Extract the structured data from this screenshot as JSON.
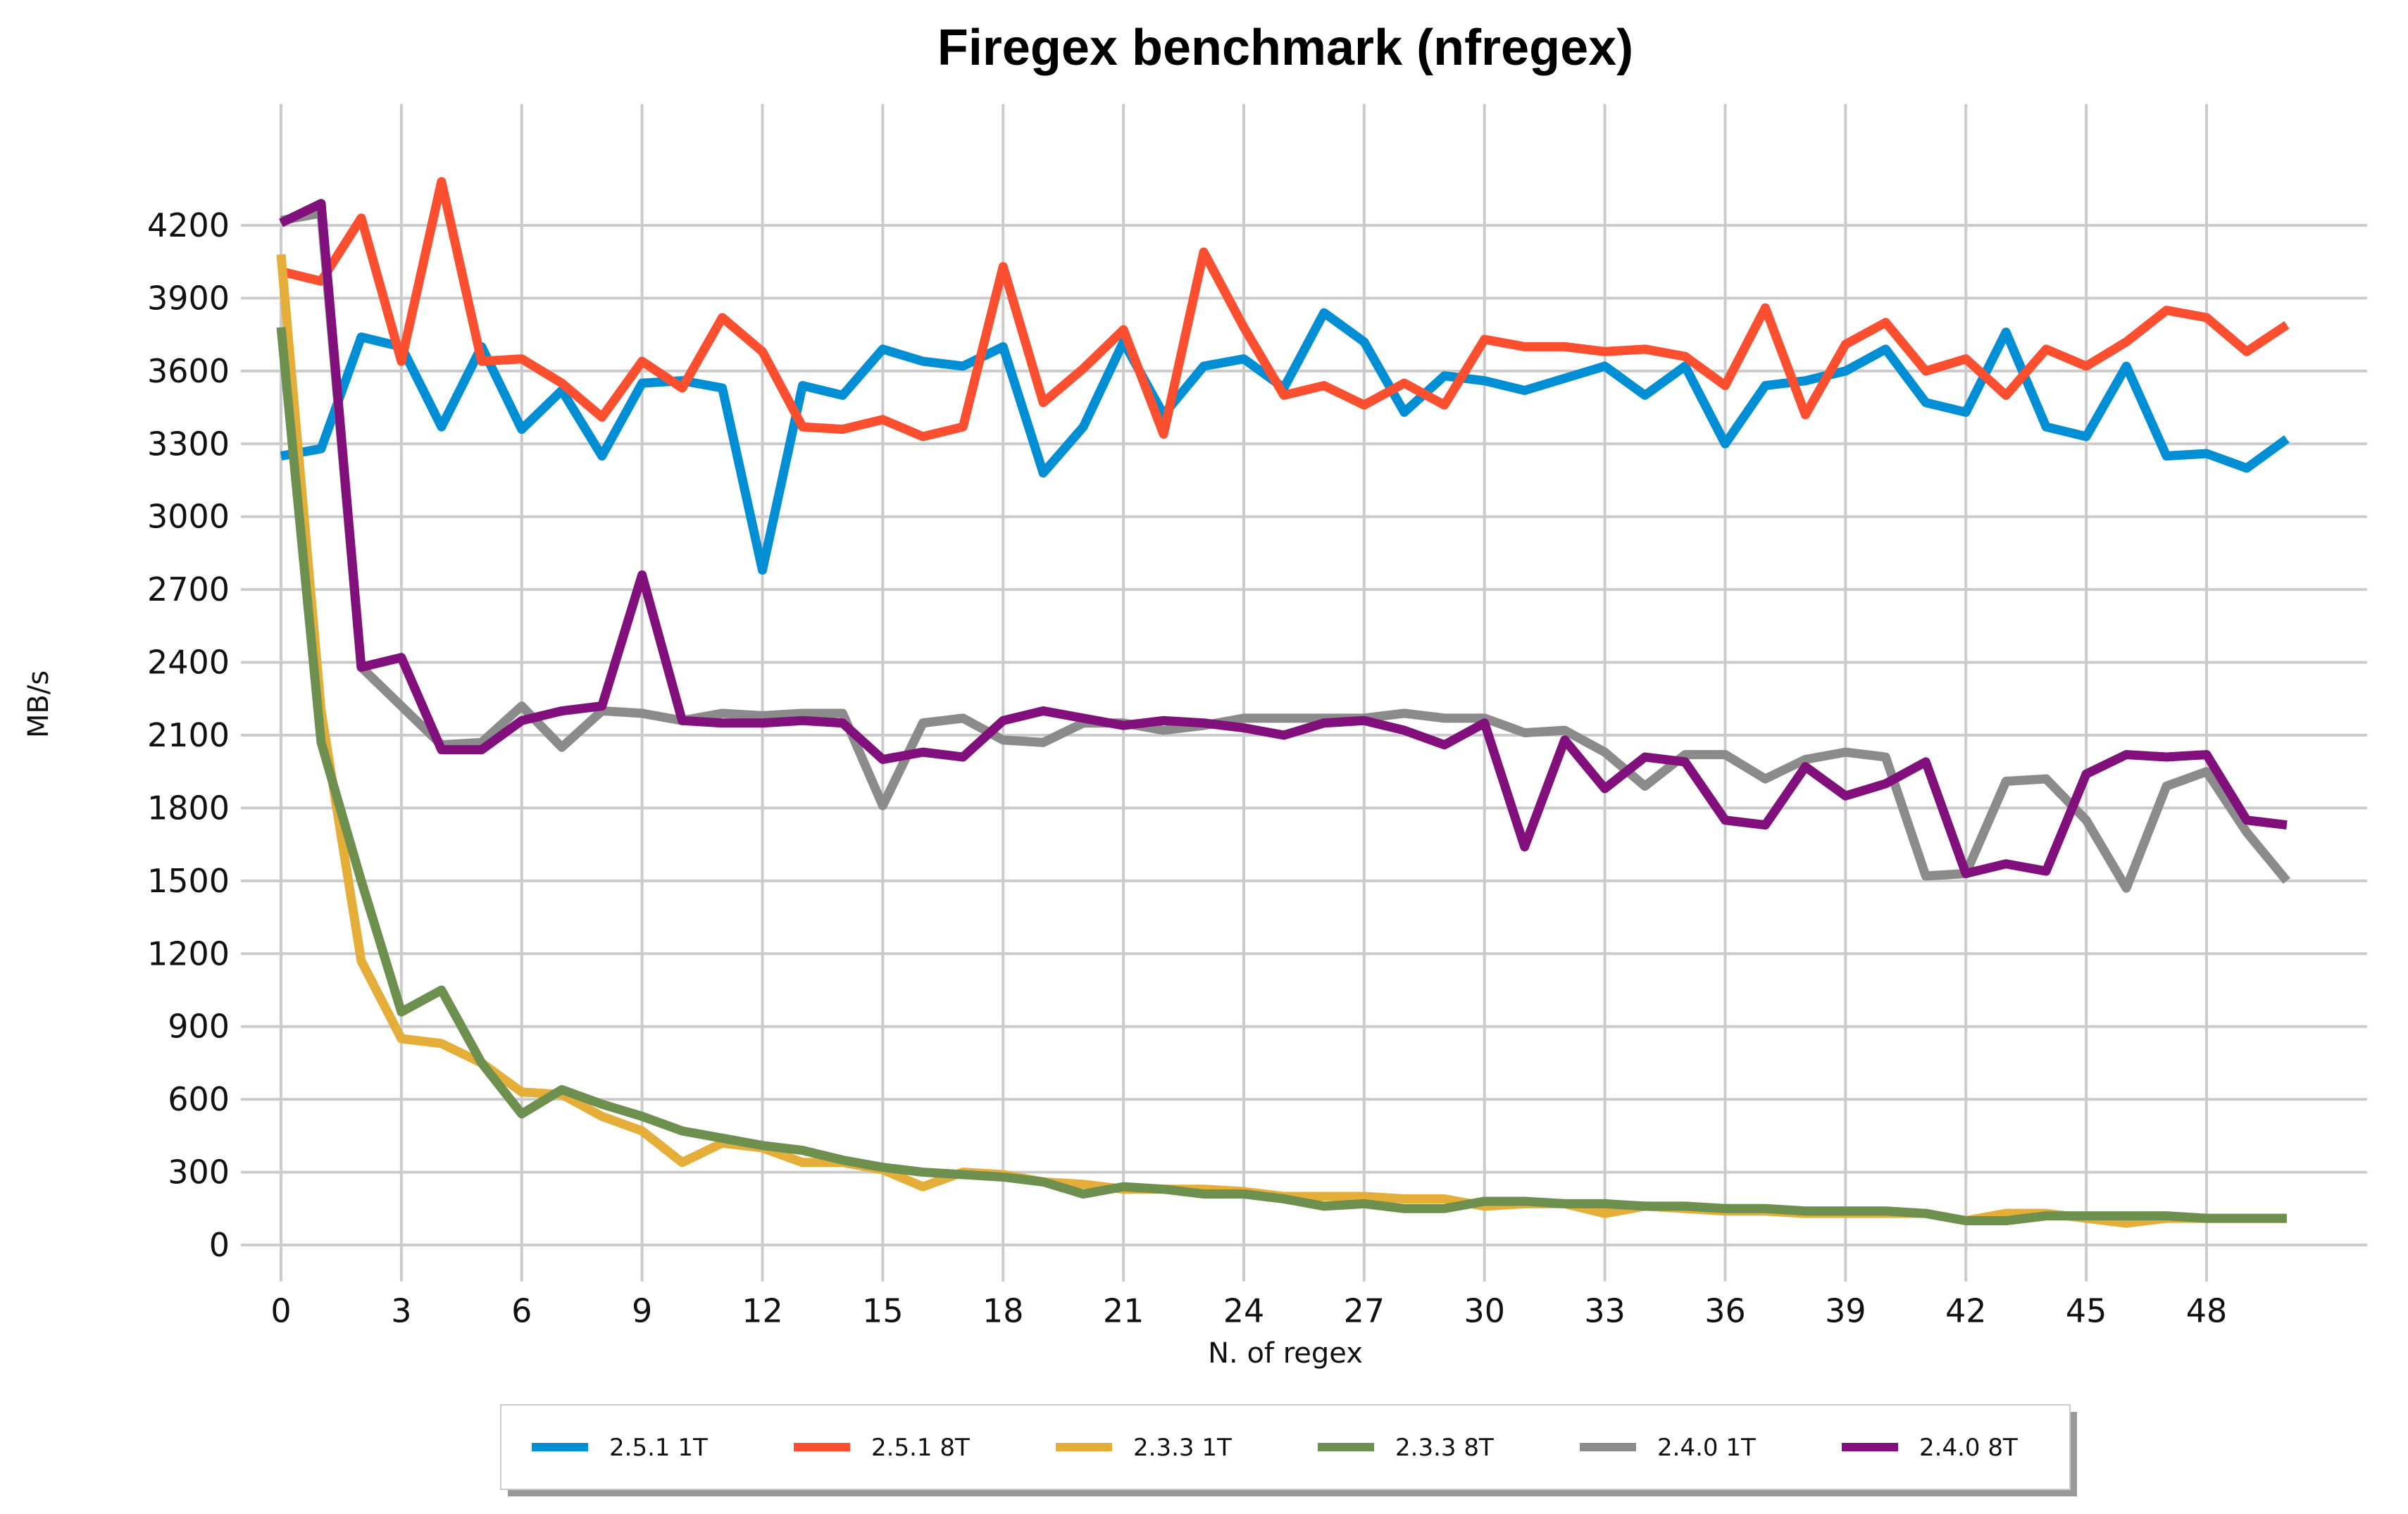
{
  "chart_data": {
    "type": "line",
    "title": "Firegex benchmark (nfregex)",
    "xlabel": "N. of regex",
    "ylabel": "MB/s",
    "xlim": [
      -1,
      52
    ],
    "ylim": [
      -150,
      4700
    ],
    "xticks": [
      0,
      3,
      6,
      9,
      12,
      15,
      18,
      21,
      24,
      27,
      30,
      33,
      36,
      39,
      42,
      45,
      48
    ],
    "yticks": [
      0,
      300,
      600,
      900,
      1200,
      1500,
      1800,
      2100,
      2400,
      2700,
      3000,
      3300,
      3600,
      3900,
      4200
    ],
    "grid": true,
    "legend_position": "bottom",
    "x": [
      0,
      1,
      2,
      3,
      4,
      5,
      6,
      7,
      8,
      9,
      10,
      11,
      12,
      13,
      14,
      15,
      16,
      17,
      18,
      19,
      20,
      21,
      22,
      23,
      24,
      25,
      26,
      27,
      28,
      29,
      30,
      31,
      32,
      33,
      34,
      35,
      36,
      37,
      38,
      39,
      40,
      41,
      42,
      43,
      44,
      45,
      46,
      47,
      48,
      49,
      50
    ],
    "series": [
      {
        "name": "2.5.1 1T",
        "color": "#008fd5",
        "values": [
          3250,
          3280,
          3740,
          3700,
          3370,
          3700,
          3360,
          3520,
          3250,
          3550,
          3560,
          3530,
          2780,
          3540,
          3500,
          3690,
          3640,
          3620,
          3700,
          3180,
          3370,
          3720,
          3420,
          3620,
          3650,
          3530,
          3840,
          3720,
          3430,
          3580,
          3560,
          3520,
          3570,
          3620,
          3500,
          3620,
          3300,
          3540,
          3560,
          3600,
          3690,
          3470,
          3430,
          3760,
          3370,
          3330,
          3620,
          3250,
          3260,
          3200,
          3320
        ]
      },
      {
        "name": "2.5.1 8T",
        "color": "#fc4f30",
        "values": [
          4010,
          3970,
          4230,
          3640,
          4380,
          3640,
          3650,
          3550,
          3410,
          3640,
          3530,
          3820,
          3680,
          3370,
          3360,
          3400,
          3330,
          3370,
          4030,
          3470,
          3610,
          3770,
          3340,
          4090,
          3780,
          3500,
          3540,
          3460,
          3550,
          3460,
          3730,
          3700,
          3700,
          3680,
          3690,
          3660,
          3540,
          3860,
          3420,
          3710,
          3800,
          3600,
          3650,
          3500,
          3690,
          3620,
          3720,
          3850,
          3820,
          3680,
          3790
        ]
      },
      {
        "name": "2.3.3 1T",
        "color": "#e5ae38",
        "values": [
          4080,
          2200,
          1170,
          850,
          830,
          750,
          630,
          620,
          530,
          470,
          340,
          420,
          400,
          340,
          340,
          310,
          240,
          300,
          290,
          260,
          250,
          230,
          230,
          230,
          220,
          200,
          200,
          200,
          190,
          190,
          160,
          170,
          170,
          130,
          160,
          150,
          140,
          140,
          130,
          130,
          130,
          130,
          100,
          130,
          130,
          110,
          90,
          110,
          110,
          110,
          110
        ]
      },
      {
        "name": "2.3.3 8T",
        "color": "#6d904f",
        "values": [
          3780,
          2070,
          1500,
          960,
          1050,
          750,
          540,
          640,
          580,
          530,
          470,
          440,
          410,
          390,
          350,
          320,
          300,
          290,
          280,
          260,
          210,
          240,
          230,
          210,
          210,
          190,
          160,
          170,
          150,
          150,
          180,
          180,
          170,
          170,
          160,
          160,
          150,
          150,
          140,
          140,
          140,
          130,
          100,
          100,
          120,
          120,
          120,
          120,
          110,
          110,
          110
        ]
      },
      {
        "name": "2.4.0 1T",
        "color": "#8b8b8b",
        "values": [
          4220,
          4250,
          2380,
          2220,
          2060,
          2070,
          2220,
          2050,
          2200,
          2190,
          2160,
          2190,
          2180,
          2190,
          2190,
          1810,
          2150,
          2170,
          2080,
          2070,
          2150,
          2150,
          2120,
          2140,
          2170,
          2170,
          2170,
          2170,
          2190,
          2170,
          2170,
          2110,
          2120,
          2030,
          1890,
          2020,
          2020,
          1920,
          2000,
          2030,
          2010,
          1520,
          1530,
          1910,
          1920,
          1750,
          1470,
          1890,
          1950,
          1700,
          1500
        ]
      },
      {
        "name": "2.4.0 8T",
        "color": "#810f7c",
        "values": [
          4210,
          4290,
          2380,
          2420,
          2040,
          2040,
          2160,
          2200,
          2220,
          2760,
          2160,
          2150,
          2150,
          2160,
          2150,
          2000,
          2030,
          2010,
          2160,
          2200,
          2170,
          2140,
          2160,
          2150,
          2130,
          2100,
          2150,
          2160,
          2120,
          2060,
          2150,
          1640,
          2080,
          1880,
          2010,
          1990,
          1750,
          1730,
          1970,
          1850,
          1900,
          1990,
          1530,
          1570,
          1540,
          1940,
          2020,
          2010,
          2020,
          1750,
          1730
        ]
      }
    ]
  }
}
